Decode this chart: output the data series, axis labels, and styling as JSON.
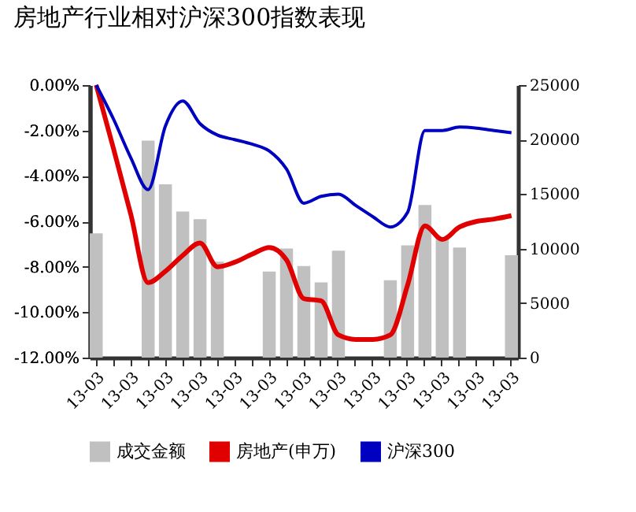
{
  "chart_data": {
    "type": "bar",
    "title": "房地产行业相对沪深300指数表现",
    "categories": [
      "13-03",
      null,
      "13-03",
      null,
      "13-03",
      null,
      "13-03",
      null,
      "13-03",
      null,
      "13-03",
      null,
      "13-03",
      null,
      "13-03",
      null,
      "13-03",
      null,
      "13-03",
      null,
      "13-03",
      null,
      "13-03",
      null,
      "13-03"
    ],
    "series": [
      {
        "name": "成交金额",
        "axis": "y2",
        "color": "#c0c0c0",
        "values": [
          11400,
          null,
          null,
          19900,
          15900,
          13400,
          12700,
          8800,
          null,
          null,
          7900,
          10000,
          8400,
          6900,
          9800,
          null,
          null,
          7100,
          10300,
          14000,
          11000,
          10100,
          null,
          null,
          9400
        ]
      },
      {
        "name": "房地产(申万)",
        "type": "line",
        "color": "#e00000",
        "values": [
          0,
          -2.8,
          -5.7,
          -8.7,
          -8.2,
          -7.5,
          -6.95,
          -8.0,
          -7.8,
          -7.45,
          -7.15,
          -7.7,
          -9.4,
          -9.5,
          -11.0,
          -11.2,
          -11.2,
          -11.0,
          -8.8,
          -6.2,
          -6.8,
          -6.25,
          -6.0,
          -5.9,
          -5.75
        ]
      },
      {
        "name": "沪深300",
        "type": "line",
        "color": "#0000c0",
        "values": [
          0,
          -1.5,
          -3.2,
          -4.6,
          -1.8,
          -0.7,
          -1.7,
          -2.2,
          -2.4,
          -2.6,
          -2.9,
          -3.7,
          -5.2,
          -4.9,
          -4.8,
          -5.3,
          -5.8,
          -6.25,
          -5.6,
          -2.0,
          -2.0,
          -1.85,
          -1.9,
          -2.0,
          -2.1
        ]
      }
    ],
    "ylim": [
      -12,
      0
    ],
    "yticks": [
      {
        "value": -12,
        "label": "-12.00%"
      },
      {
        "value": -10,
        "label": "-10.00%"
      },
      {
        "value": -8,
        "label": "-8.00%"
      },
      {
        "value": -6,
        "label": "-6.00%"
      },
      {
        "value": -4,
        "label": "-4.00%"
      },
      {
        "value": -2,
        "label": "-2.00%"
      },
      {
        "value": 0,
        "label": "0.00%"
      }
    ],
    "y2lim": [
      0,
      25000
    ],
    "y2ticks": [
      0,
      5000,
      10000,
      15000,
      20000,
      25000
    ],
    "grid": false,
    "legend": "bottom"
  }
}
